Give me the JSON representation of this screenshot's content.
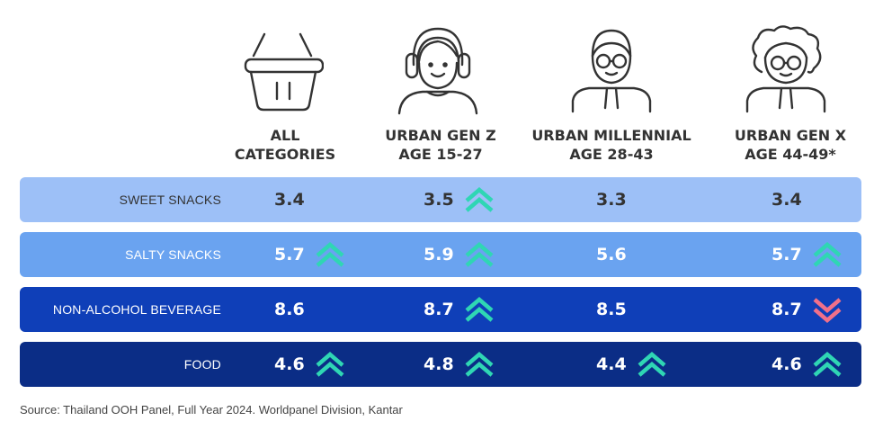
{
  "columns": [
    {
      "key": "all",
      "line1": "ALL",
      "line2": "CATEGORIES",
      "icon": "basket-icon"
    },
    {
      "key": "genz",
      "line1": "URBAN GEN Z",
      "line2": "AGE 15-27",
      "icon": "headphones-person-icon"
    },
    {
      "key": "millennial",
      "line1": "URBAN MILLENNIAL",
      "line2": "AGE 28-43",
      "icon": "glasses-person-icon"
    },
    {
      "key": "genx",
      "line1": "URBAN GEN X",
      "line2": "AGE 44-49*",
      "icon": "curly-hair-person-icon"
    }
  ],
  "colors": {
    "up": "#2fd6b4",
    "down": "#f0708a",
    "row_sweet": "#9dc0f7",
    "row_salty": "#6aa3f0",
    "row_beverage": "#0f3fb8",
    "row_food": "#0b2d86"
  },
  "chart_data": {
    "type": "table",
    "rows": [
      {
        "label": "SWEET SNACKS",
        "values": [
          "3.4",
          "3.5",
          "3.3",
          "3.4"
        ],
        "trends": [
          "none",
          "up",
          "none",
          "none"
        ],
        "bg": "#9dc0f7",
        "text": "#333333"
      },
      {
        "label": "SALTY SNACKS",
        "values": [
          "5.7",
          "5.9",
          "5.6",
          "5.7"
        ],
        "trends": [
          "up",
          "up",
          "none",
          "up"
        ],
        "bg": "#6aa3f0",
        "text": "#ffffff"
      },
      {
        "label": "NON-ALCOHOL BEVERAGE",
        "values": [
          "8.6",
          "8.7",
          "8.5",
          "8.7"
        ],
        "trends": [
          "none",
          "up",
          "none",
          "down"
        ],
        "bg": "#0f3fb8",
        "text": "#ffffff"
      },
      {
        "label": "FOOD",
        "values": [
          "4.6",
          "4.8",
          "4.4",
          "4.6"
        ],
        "trends": [
          "up",
          "up",
          "up",
          "up"
        ],
        "bg": "#0b2d86",
        "text": "#ffffff"
      }
    ]
  },
  "source": "Source: Thailand OOH Panel, Full Year 2024. Worldpanel Division, Kantar"
}
